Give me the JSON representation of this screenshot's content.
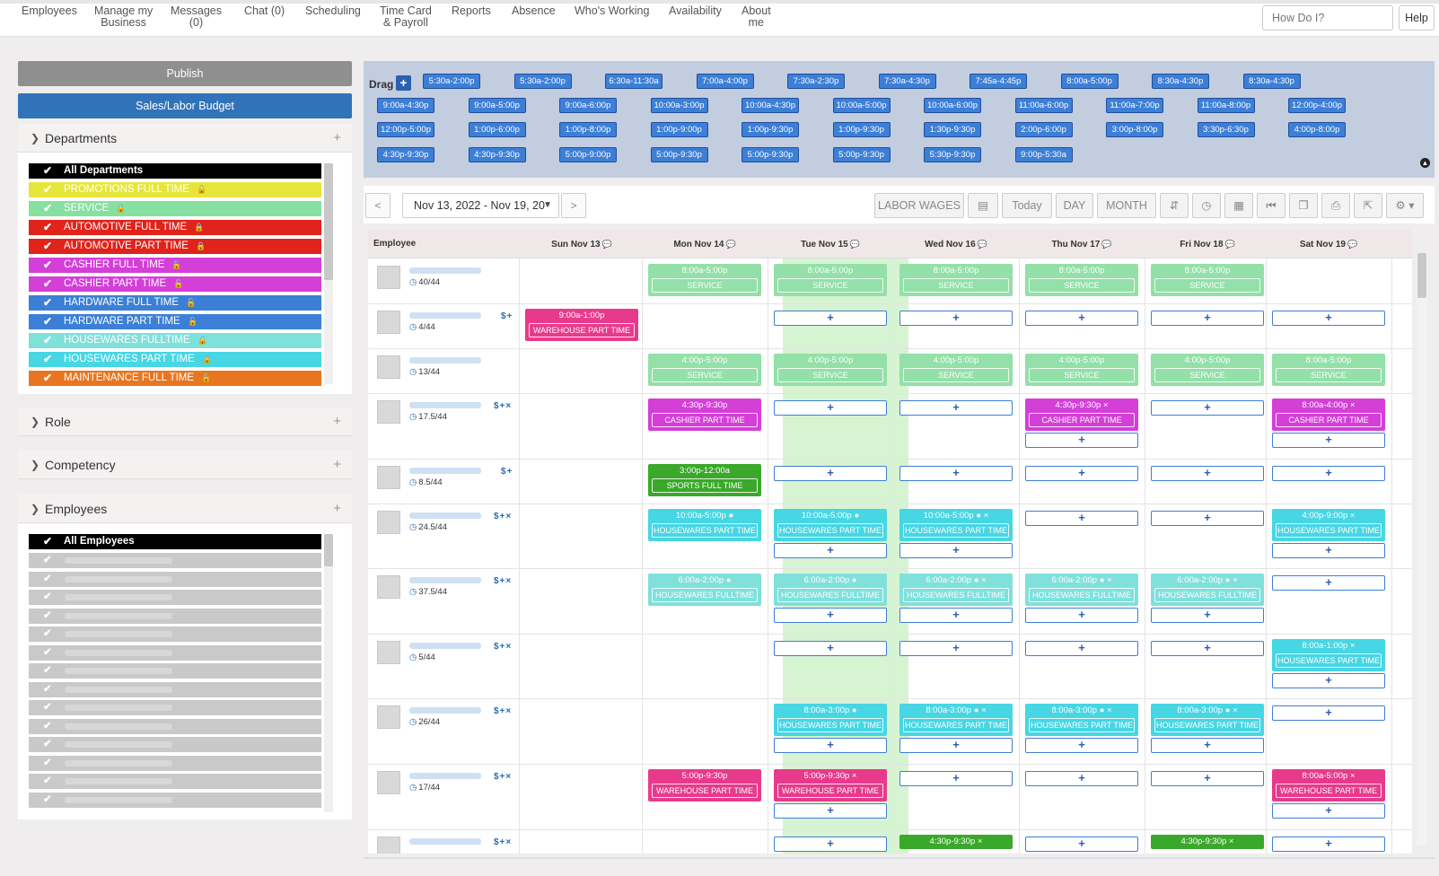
{
  "nav": {
    "items": [
      "Employees",
      "Manage my\nBusiness",
      "Messages\n(0)",
      "Chat (0)",
      "Scheduling",
      "Time Card\n& Payroll",
      "Reports",
      "Absence",
      "Who's Working",
      "Availability",
      "About\nme"
    ],
    "search_placeholder": "How Do I?",
    "help_label": "Help"
  },
  "sidebar": {
    "publish_label": "Publish",
    "budget_label": "Sales/Labor Budget",
    "departments_title": "Departments",
    "role_title": "Role",
    "competency_title": "Competency",
    "employees_title": "Employees",
    "all_employees_label": "All Employees",
    "departments": [
      {
        "label": "All Departments",
        "color": "#000000",
        "lock": ""
      },
      {
        "label": "PROMOTIONS FULL TIME",
        "color": "#e6e63a",
        "lock": "unlocked"
      },
      {
        "label": "SERVICE",
        "color": "#86e0a0",
        "lock": "locked"
      },
      {
        "label": "AUTOMOTIVE FULL TIME",
        "color": "#e0231b",
        "lock": "locked"
      },
      {
        "label": "AUTOMOTIVE PART TIME",
        "color": "#e0231b",
        "lock": "locked"
      },
      {
        "label": "CASHIER FULL TIME",
        "color": "#d43fd8",
        "lock": "unlocked"
      },
      {
        "label": "CASHIER PART TIME",
        "color": "#d43fd8",
        "lock": "unlocked"
      },
      {
        "label": "HARDWARE FULL TIME",
        "color": "#3b7fd6",
        "lock": "unlocked"
      },
      {
        "label": "HARDWARE PART TIME",
        "color": "#3b7fd6",
        "lock": "unlocked"
      },
      {
        "label": "HOUSEWARES FULLTIME",
        "color": "#80e0dc",
        "lock": "unlocked"
      },
      {
        "label": "HOUSEWARES PART TIME",
        "color": "#47d6e4",
        "lock": "unlocked"
      },
      {
        "label": "MAINTENANCE FULL TIME",
        "color": "#e87620",
        "lock": "unlocked"
      }
    ]
  },
  "drag": {
    "label": "Drag",
    "chips": [
      [
        "5:30a-2:00p",
        "5:30a-2:00p",
        "6:30a-11:30a",
        "7:00a-4:00p",
        "7:30a-2:30p",
        "7:30a-4:30p",
        "7:45a-4:45p",
        "8:00a-5:00p",
        "8:30a-4:30p",
        "8:30a-4:30p"
      ],
      [
        "9:00a-4:30p",
        "9:00a-5:00p",
        "9:00a-6:00p",
        "10:00a-3:00p",
        "10:00a-4:30p",
        "10:00a-5:00p",
        "10:00a-6:00p",
        "11:00a-6:00p",
        "11:00a-7:00p",
        "11:00a-8:00p",
        "12:00p-4:00p"
      ],
      [
        "12:00p-5:00p",
        "1:00p-6:00p",
        "1:00p-8:00p",
        "1:00p-9:00p",
        "1:00p-9:30p",
        "1:00p-9:30p",
        "1:30p-9:30p",
        "2:00p-6:00p",
        "3:00p-8:00p",
        "3:30p-6:30p",
        "4:00p-8:00p"
      ],
      [
        "4:30p-9:30p",
        "4:30p-9:30p",
        "5:00p-9:00p",
        "5:00p-9:30p",
        "5:00p-9:30p",
        "5:00p-9:30p",
        "5:30p-9:30p",
        "9:00p-5:30a"
      ]
    ]
  },
  "toolbar": {
    "prev": "<",
    "next": ">",
    "date_range": "Nov 13, 2022 - Nov 19, 20",
    "labor_wages": "LABOR WAGES",
    "today": "Today",
    "day": "DAY",
    "month": "MONTH"
  },
  "grid": {
    "employee_header": "Employee",
    "days": [
      "Sun Nov 13",
      "Mon Nov 14",
      "Tue Nov 15",
      "Wed Nov 16",
      "Thu Nov 17",
      "Fri Nov 18",
      "Sat Nov 19"
    ],
    "rows": [
      {
        "hours": "40/44",
        "icons": ""
      },
      {
        "hours": "4/44",
        "icons": "$+"
      },
      {
        "hours": "13/44",
        "icons": ""
      },
      {
        "hours": "17.5/44",
        "icons": "$+×"
      },
      {
        "hours": "8.5/44",
        "icons": "$+"
      },
      {
        "hours": "24.5/44",
        "icons": "$+×"
      },
      {
        "hours": "37.5/44",
        "icons": "$+×"
      },
      {
        "hours": "5/44",
        "icons": "$+×"
      },
      {
        "hours": "26/44",
        "icons": "$+×"
      },
      {
        "hours": "17/44",
        "icons": "$+×"
      },
      {
        "hours": "",
        "icons": "$+×"
      }
    ],
    "shifts": [
      {
        "row": 0,
        "day": 1,
        "time": "8:00a-5:00p",
        "role": "SERVICE",
        "color": "#93e0a8"
      },
      {
        "row": 0,
        "day": 2,
        "time": "8:00a-5:00p",
        "role": "SERVICE",
        "color": "#93e0a8"
      },
      {
        "row": 0,
        "day": 3,
        "time": "8:00a-5:00p",
        "role": "SERVICE",
        "color": "#93e0a8"
      },
      {
        "row": 0,
        "day": 4,
        "time": "8:00a-5:00p",
        "role": "SERVICE",
        "color": "#93e0a8"
      },
      {
        "row": 0,
        "day": 5,
        "time": "8:00a-5:00p",
        "role": "SERVICE",
        "color": "#93e0a8"
      },
      {
        "row": 1,
        "day": 0,
        "time": "9:00a-1:00p",
        "role": "WAREHOUSE PART TIME",
        "color": "#e83a8c"
      },
      {
        "row": 2,
        "day": 1,
        "time": "4:00p-5:00p",
        "role": "SERVICE",
        "color": "#93e0a8"
      },
      {
        "row": 2,
        "day": 2,
        "time": "4:00p-5:00p",
        "role": "SERVICE",
        "color": "#93e0a8"
      },
      {
        "row": 2,
        "day": 3,
        "time": "4:00p-5:00p",
        "role": "SERVICE",
        "color": "#93e0a8"
      },
      {
        "row": 2,
        "day": 4,
        "time": "4:00p-5:00p",
        "role": "SERVICE",
        "color": "#93e0a8"
      },
      {
        "row": 2,
        "day": 5,
        "time": "4:00p-5:00p",
        "role": "SERVICE",
        "color": "#93e0a8"
      },
      {
        "row": 2,
        "day": 6,
        "time": "8:00a-5:00p",
        "role": "SERVICE",
        "color": "#93e0a8"
      },
      {
        "row": 3,
        "day": 1,
        "time": "4:30p-9:30p",
        "role": "CASHIER PART TIME",
        "color": "#d43fd8"
      },
      {
        "row": 3,
        "day": 4,
        "time": "4:30p-9:30p ×",
        "role": "CASHIER PART TIME",
        "color": "#d43fd8"
      },
      {
        "row": 3,
        "day": 6,
        "time": "8:00a-4:00p ×",
        "role": "CASHIER PART TIME",
        "color": "#d43fd8"
      },
      {
        "row": 4,
        "day": 1,
        "time": "3:00p-12:00a",
        "role": "SPORTS FULL TIME",
        "color": "#3aa82a"
      },
      {
        "row": 5,
        "day": 1,
        "time": "10:00a-5:00p ●",
        "role": "HOUSEWARES PART TIME",
        "color": "#47d6e4"
      },
      {
        "row": 5,
        "day": 2,
        "time": "10:00a-5:00p ●",
        "role": "HOUSEWARES PART TIME",
        "color": "#47d6e4"
      },
      {
        "row": 5,
        "day": 3,
        "time": "10:00a-5:00p ● ×",
        "role": "HOUSEWARES PART TIME",
        "color": "#47d6e4"
      },
      {
        "row": 5,
        "day": 6,
        "time": "4:00p-9:00p ×",
        "role": "HOUSEWARES PART TIME",
        "color": "#47d6e4"
      },
      {
        "row": 6,
        "day": 1,
        "time": "6:00a-2:00p ●",
        "role": "HOUSEWARES FULLTIME",
        "color": "#80e0dc"
      },
      {
        "row": 6,
        "day": 2,
        "time": "6:00a-2:00p ●",
        "role": "HOUSEWARES FULLTIME",
        "color": "#80e0dc"
      },
      {
        "row": 6,
        "day": 3,
        "time": "6:00a-2:00p ● ×",
        "role": "HOUSEWARES FULLTIME",
        "color": "#80e0dc"
      },
      {
        "row": 6,
        "day": 4,
        "time": "6:00a-2:00p ● ×",
        "role": "HOUSEWARES FULLTIME",
        "color": "#80e0dc"
      },
      {
        "row": 6,
        "day": 5,
        "time": "6:00a-2:00p ● ×",
        "role": "HOUSEWARES FULLTIME",
        "color": "#80e0dc"
      },
      {
        "row": 7,
        "day": 6,
        "time": "8:00a-1:00p ×",
        "role": "HOUSEWARES PART TIME",
        "color": "#47d6e4"
      },
      {
        "row": 8,
        "day": 2,
        "time": "8:00a-3:00p ●",
        "role": "HOUSEWARES PART TIME",
        "color": "#47d6e4"
      },
      {
        "row": 8,
        "day": 3,
        "time": "8:00a-3:00p ● ×",
        "role": "HOUSEWARES PART TIME",
        "color": "#47d6e4"
      },
      {
        "row": 8,
        "day": 4,
        "time": "8:00a-3:00p ● ×",
        "role": "HOUSEWARES PART TIME",
        "color": "#47d6e4"
      },
      {
        "row": 8,
        "day": 5,
        "time": "8:00a-3:00p ● ×",
        "role": "HOUSEWARES PART TIME",
        "color": "#47d6e4"
      },
      {
        "row": 9,
        "day": 1,
        "time": "5:00p-9:30p",
        "role": "WAREHOUSE PART TIME",
        "color": "#e83a8c"
      },
      {
        "row": 9,
        "day": 2,
        "time": "5:00p-9:30p ×",
        "role": "WAREHOUSE PART TIME",
        "color": "#e83a8c"
      },
      {
        "row": 9,
        "day": 6,
        "time": "8:00a-5:00p ×",
        "role": "WAREHOUSE PART TIME",
        "color": "#e83a8c"
      },
      {
        "row": 10,
        "day": 3,
        "time": "4:30p-9:30p ×",
        "role": "",
        "color": "#3aa82a"
      },
      {
        "row": 10,
        "day": 5,
        "time": "4:30p-9:30p ×",
        "role": "",
        "color": "#3aa82a"
      }
    ],
    "adds": [
      [
        1,
        2
      ],
      [
        1,
        3
      ],
      [
        1,
        4
      ],
      [
        1,
        5
      ],
      [
        1,
        6
      ],
      [
        3,
        2
      ],
      [
        3,
        3
      ],
      [
        3,
        5
      ],
      [
        3,
        4
      ],
      [
        3,
        6
      ],
      [
        4,
        2
      ],
      [
        4,
        3
      ],
      [
        4,
        4
      ],
      [
        4,
        5
      ],
      [
        4,
        6
      ],
      [
        5,
        4
      ],
      [
        5,
        5
      ],
      [
        5,
        2
      ],
      [
        5,
        3
      ],
      [
        5,
        6
      ],
      [
        6,
        6
      ],
      [
        6,
        2
      ],
      [
        6,
        3
      ],
      [
        6,
        4
      ],
      [
        6,
        5
      ],
      [
        7,
        2
      ],
      [
        7,
        3
      ],
      [
        7,
        4
      ],
      [
        7,
        5
      ],
      [
        7,
        6
      ],
      [
        8,
        6
      ],
      [
        8,
        2
      ],
      [
        8,
        3
      ],
      [
        8,
        4
      ],
      [
        8,
        5
      ],
      [
        9,
        3
      ],
      [
        9,
        4
      ],
      [
        9,
        5
      ],
      [
        9,
        2
      ],
      [
        9,
        6
      ],
      [
        10,
        2
      ],
      [
        10,
        4
      ],
      [
        10,
        6
      ]
    ]
  }
}
